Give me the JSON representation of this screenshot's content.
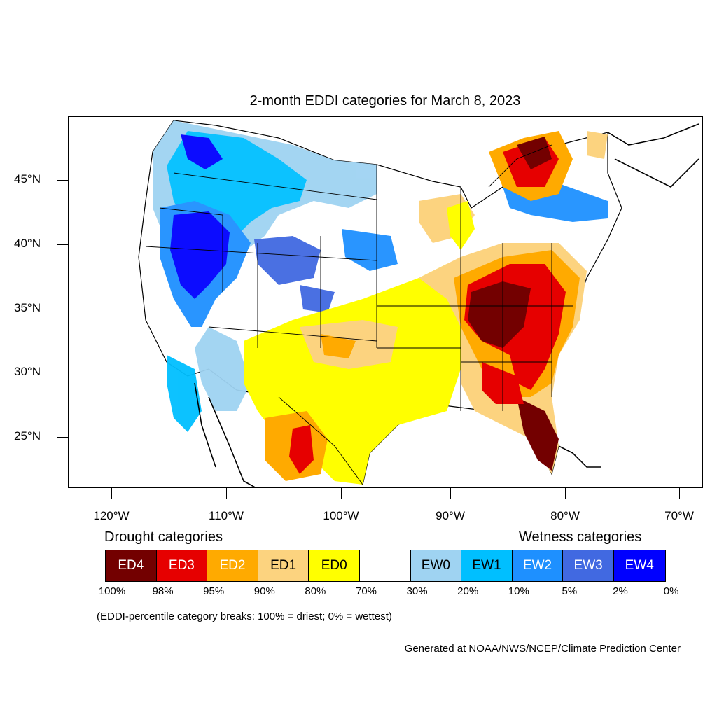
{
  "title": "2-month EDDI categories for March 8, 2023",
  "axes": {
    "latitude_labels": [
      "45°N",
      "40°N",
      "35°N",
      "30°N",
      "25°N"
    ],
    "longitude_labels": [
      "120°W",
      "110°W",
      "100°W",
      "90°W",
      "80°W",
      "70°W"
    ]
  },
  "legend": {
    "drought_heading": "Drought categories",
    "wetness_heading": "Wetness categories",
    "categories": [
      {
        "label": "ED4",
        "color": "#730000",
        "text_color": "#ffffff"
      },
      {
        "label": "ED3",
        "color": "#e60000",
        "text_color": "#ffffff"
      },
      {
        "label": "ED2",
        "color": "#ffaa00",
        "text_color": "#ffffff"
      },
      {
        "label": "ED1",
        "color": "#fcd37f",
        "text_color": "#000000"
      },
      {
        "label": "ED0",
        "color": "#ffff00",
        "text_color": "#000000"
      },
      {
        "label": "",
        "color": "#ffffff",
        "text_color": "#000000"
      },
      {
        "label": "EW0",
        "color": "#9fd3f2",
        "text_color": "#000000"
      },
      {
        "label": "EW1",
        "color": "#00bfff",
        "text_color": "#000000"
      },
      {
        "label": "EW2",
        "color": "#1e90ff",
        "text_color": "#ffffff"
      },
      {
        "label": "EW3",
        "color": "#4169e1",
        "text_color": "#ffffff"
      },
      {
        "label": "EW4",
        "color": "#0000ff",
        "text_color": "#ffffff"
      }
    ],
    "breaks": [
      "100%",
      "98%",
      "95%",
      "90%",
      "80%",
      "70%",
      "30%",
      "20%",
      "10%",
      "5%",
      "2%",
      "0%"
    ]
  },
  "note": "(EDDI-percentile category breaks: 100% = driest; 0% = wettest)",
  "credit": "Generated at NOAA/NWS/NCEP/Climate Prediction Center"
}
